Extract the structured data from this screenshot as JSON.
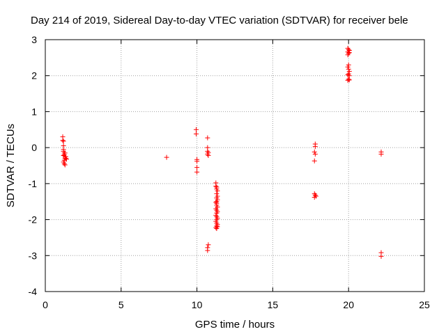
{
  "chart_data": {
    "type": "scatter",
    "title": "Day 214 of 2019, Sidereal Day-to-day VTEC variation (SDTVAR) for receiver bele",
    "xlabel": "GPS time / hours",
    "ylabel": "SDTVAR / TECUs",
    "xlim": [
      0,
      25
    ],
    "ylim": [
      -4,
      3
    ],
    "xticks": [
      0,
      5,
      10,
      15,
      20,
      25
    ],
    "yticks": [
      -4,
      -3,
      -2,
      -1,
      0,
      1,
      2,
      3
    ],
    "grid": true,
    "marker": "+",
    "color": "#ff0000",
    "points": [
      [
        1.15,
        0.3
      ],
      [
        1.15,
        0.2
      ],
      [
        1.2,
        0.18
      ],
      [
        1.2,
        0.05
      ],
      [
        1.2,
        -0.05
      ],
      [
        1.2,
        -0.1
      ],
      [
        1.25,
        -0.15
      ],
      [
        1.25,
        -0.2
      ],
      [
        1.3,
        -0.25
      ],
      [
        1.3,
        -0.3
      ],
      [
        1.25,
        -0.35
      ],
      [
        1.2,
        -0.4
      ],
      [
        1.25,
        -0.45
      ],
      [
        1.3,
        -0.48
      ],
      [
        1.35,
        -0.25
      ],
      [
        1.35,
        -0.3
      ],
      [
        1.4,
        -0.32
      ],
      [
        1.2,
        -0.22
      ],
      [
        1.3,
        -0.15
      ],
      [
        8.0,
        -0.27
      ],
      [
        9.95,
        0.5
      ],
      [
        9.95,
        0.38
      ],
      [
        10.0,
        -0.33
      ],
      [
        10.0,
        -0.38
      ],
      [
        10.0,
        -0.55
      ],
      [
        10.0,
        -0.68
      ],
      [
        10.7,
        0.27
      ],
      [
        10.7,
        0.0
      ],
      [
        10.7,
        -0.1
      ],
      [
        10.75,
        -0.14
      ],
      [
        10.7,
        -0.18
      ],
      [
        10.75,
        -0.22
      ],
      [
        10.75,
        -2.7
      ],
      [
        10.7,
        -2.78
      ],
      [
        10.7,
        -2.86
      ],
      [
        11.25,
        -0.98
      ],
      [
        11.25,
        -1.07
      ],
      [
        11.3,
        -1.1
      ],
      [
        11.3,
        -1.15
      ],
      [
        11.35,
        -1.2
      ],
      [
        11.3,
        -1.28
      ],
      [
        11.35,
        -1.35
      ],
      [
        11.3,
        -1.4
      ],
      [
        11.35,
        -1.45
      ],
      [
        11.25,
        -1.52
      ],
      [
        11.3,
        -1.55
      ],
      [
        11.3,
        -1.6
      ],
      [
        11.35,
        -1.65
      ],
      [
        11.25,
        -1.7
      ],
      [
        11.3,
        -1.74
      ],
      [
        11.35,
        -1.78
      ],
      [
        11.3,
        -1.82
      ],
      [
        11.25,
        -1.88
      ],
      [
        11.3,
        -1.92
      ],
      [
        11.35,
        -1.96
      ],
      [
        11.3,
        -2.0
      ],
      [
        11.25,
        -2.05
      ],
      [
        11.3,
        -2.1
      ],
      [
        11.35,
        -2.14
      ],
      [
        11.3,
        -2.18
      ],
      [
        11.25,
        -2.22
      ],
      [
        11.3,
        -2.25
      ],
      [
        11.35,
        -2.2
      ],
      [
        11.3,
        -1.1
      ],
      [
        11.3,
        -1.5
      ],
      [
        17.8,
        0.1
      ],
      [
        17.8,
        0.03
      ],
      [
        17.75,
        -0.12
      ],
      [
        17.8,
        -0.18
      ],
      [
        17.75,
        -0.37
      ],
      [
        17.75,
        -1.28
      ],
      [
        17.8,
        -1.32
      ],
      [
        17.85,
        -1.35
      ],
      [
        17.75,
        -1.38
      ],
      [
        19.95,
        2.76
      ],
      [
        20.0,
        2.72
      ],
      [
        20.05,
        2.7
      ],
      [
        19.95,
        2.66
      ],
      [
        20.0,
        2.62
      ],
      [
        19.95,
        2.58
      ],
      [
        20.05,
        2.64
      ],
      [
        20.0,
        2.3
      ],
      [
        19.95,
        2.24
      ],
      [
        20.0,
        2.18
      ],
      [
        20.05,
        2.12
      ],
      [
        20.0,
        2.05
      ],
      [
        19.95,
        2.02
      ],
      [
        20.05,
        2.0
      ],
      [
        20.0,
        1.9
      ],
      [
        19.95,
        1.87
      ],
      [
        20.05,
        1.88
      ],
      [
        22.15,
        -0.12
      ],
      [
        22.15,
        -0.18
      ],
      [
        22.15,
        -2.92
      ],
      [
        22.15,
        -3.02
      ]
    ]
  }
}
